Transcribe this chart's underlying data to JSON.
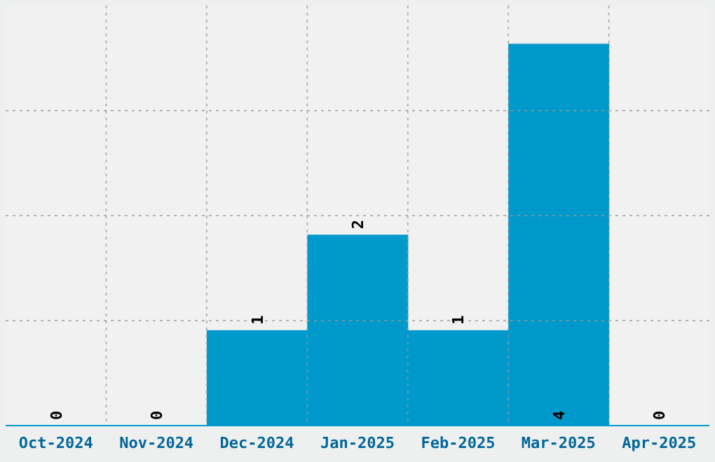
{
  "chart_data": {
    "type": "bar",
    "categories": [
      "Oct-2024",
      "Nov-2024",
      "Dec-2024",
      "Jan-2025",
      "Feb-2025",
      "Mar-2025",
      "Apr-2025"
    ],
    "values": [
      0,
      0,
      1,
      2,
      1,
      4,
      0
    ],
    "color": "#0099cc",
    "ylim": [
      0,
      4.4
    ],
    "tick_labels": "x",
    "grid": true,
    "data_labels": true
  }
}
